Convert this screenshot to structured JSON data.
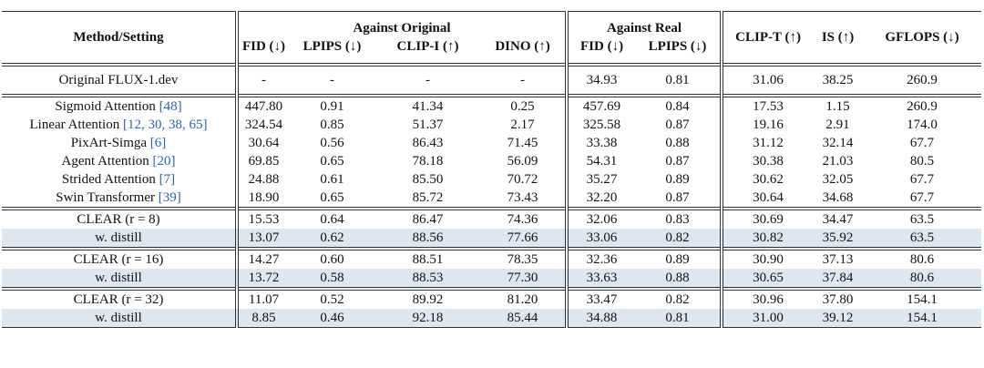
{
  "table": {
    "header": {
      "method": "Method/Setting",
      "groups": [
        {
          "label": "Against Original",
          "columns": [
            "FID (↓)",
            "LPIPS (↓)",
            "CLIP-I (↑)",
            "DINO (↑)"
          ]
        },
        {
          "label": "Against Real",
          "columns": [
            "FID (↓)",
            "LPIPS (↓)"
          ]
        }
      ],
      "others": [
        "CLIP-T (↑)",
        "IS (↑)",
        "GFLOPS (↓)"
      ]
    },
    "sections": [
      [
        {
          "method": "Original FLUX-1.dev",
          "cells": [
            "-",
            "-",
            "-",
            "-",
            "34.93",
            "0.81",
            "31.06",
            "38.25",
            "260.9"
          ]
        }
      ],
      [
        {
          "method": "Sigmoid Attention",
          "cite": "[48]",
          "cells": [
            "447.80",
            "0.91",
            "41.34",
            "0.25",
            "457.69",
            "0.84",
            "17.53",
            "1.15",
            "260.9"
          ]
        },
        {
          "method": "Linear Attention",
          "cite": "[12, 30, 38, 65]",
          "cells": [
            "324.54",
            "0.85",
            "51.37",
            "2.17",
            "325.58",
            "0.87",
            "19.16",
            "2.91",
            "174.0"
          ]
        },
        {
          "method": "PixArt-Simga",
          "cite": "[6]",
          "cells": [
            "30.64",
            "0.56",
            "86.43",
            "71.45",
            "33.38",
            "0.88",
            "31.12",
            "32.14",
            "67.7"
          ]
        },
        {
          "method": "Agent Attention",
          "cite": "[20]",
          "cells": [
            "69.85",
            "0.65",
            "78.18",
            "56.09",
            "54.31",
            "0.87",
            "30.38",
            "21.03",
            "80.5"
          ]
        },
        {
          "method": "Strided Attention",
          "cite": "[7]",
          "cells": [
            "24.88",
            "0.61",
            "85.50",
            "70.72",
            "35.27",
            "0.89",
            "30.62",
            "32.05",
            "67.7"
          ]
        },
        {
          "method": "Swin Transformer",
          "cite": "[39]",
          "cells": [
            "18.90",
            "0.65",
            "85.72",
            "73.43",
            "32.20",
            "0.87",
            "30.64",
            "34.68",
            "67.7"
          ]
        }
      ],
      [
        {
          "method": "CLEAR (r = 8)",
          "cells": [
            "15.53",
            "0.64",
            "86.47",
            "74.36",
            "32.06",
            "0.83",
            "30.69",
            "34.47",
            "63.5"
          ]
        },
        {
          "method": "w. distill",
          "shaded": true,
          "cells": [
            "13.07",
            "0.62",
            "88.56",
            "77.66",
            "33.06",
            "0.82",
            "30.82",
            "35.92",
            "63.5"
          ]
        }
      ],
      [
        {
          "method": "CLEAR (r = 16)",
          "cells": [
            "14.27",
            "0.60",
            "88.51",
            "78.35",
            "32.36",
            "0.89",
            "30.90",
            "37.13",
            "80.6"
          ]
        },
        {
          "method": "w. distill",
          "shaded": true,
          "cells": [
            "13.72",
            "0.58",
            "88.53",
            "77.30",
            "33.63",
            "0.88",
            "30.65",
            "37.84",
            "80.6"
          ]
        }
      ],
      [
        {
          "method": "CLEAR (r = 32)",
          "cells": [
            "11.07",
            "0.52",
            "89.92",
            "81.20",
            "33.47",
            "0.82",
            "30.96",
            "37.80",
            "154.1"
          ]
        },
        {
          "method": "w. distill",
          "shaded": true,
          "cells": [
            "8.85",
            "0.46",
            "92.18",
            "85.44",
            "34.88",
            "0.81",
            "31.00",
            "39.12",
            "154.1"
          ]
        }
      ]
    ]
  }
}
